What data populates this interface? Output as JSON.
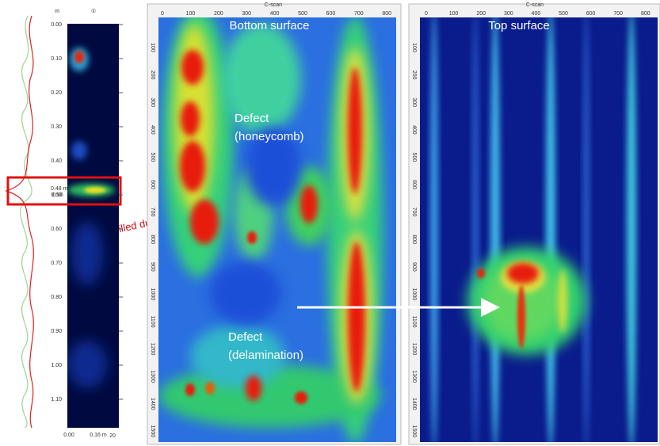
{
  "left_panel": {
    "unit": "m",
    "marker": "①",
    "depth_labels": [
      "0.00",
      "0.10",
      "0.20",
      "0.30",
      "0.40",
      "0.50",
      "0.60",
      "0.70",
      "0.80",
      "0.90",
      "1.00",
      "1.10"
    ],
    "cursor_label": "0.48 m",
    "cursor_depth": "0.50",
    "bottom_labels": [
      "0.00",
      "0.16 m",
      "20"
    ]
  },
  "annotation": "illed duct",
  "bottom_scan": {
    "title": "C-scan",
    "label": "Bottom surface",
    "x_ticks": [
      "0",
      "100",
      "200",
      "300",
      "400",
      "500",
      "600",
      "700",
      "800"
    ],
    "y_ticks": [
      "100",
      "200",
      "300",
      "400",
      "500",
      "600",
      "700",
      "800",
      "900",
      "1000",
      "1100",
      "1200",
      "1300",
      "1400",
      "1500"
    ],
    "defect_1": [
      "Defect",
      "(honeycomb)"
    ],
    "defect_2": [
      "Defect",
      "(delamination)"
    ]
  },
  "top_scan": {
    "title": "C-scan",
    "label": "Top surface",
    "x_ticks": [
      "0",
      "100",
      "200",
      "300",
      "400",
      "500",
      "600",
      "700",
      "800"
    ],
    "y_ticks": [
      "100",
      "200",
      "300",
      "400",
      "500",
      "600",
      "700",
      "800",
      "900",
      "1000",
      "1100",
      "1200",
      "1300",
      "1400",
      "1500"
    ]
  }
}
